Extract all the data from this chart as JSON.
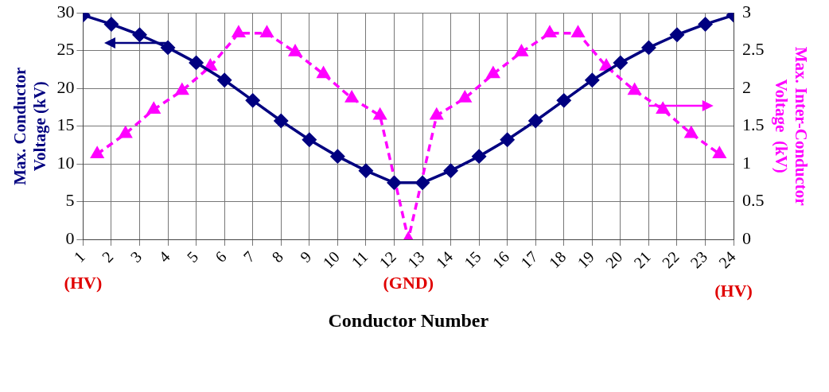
{
  "chart_data": {
    "type": "line",
    "xlabel": "Conductor Number",
    "ylabel": "Max. Conductor Voltage (kV)",
    "y2label": "Max. Inter-Conductor Voltage  (kV)",
    "xlim": [
      1,
      24
    ],
    "xticks": [
      1,
      2,
      3,
      4,
      5,
      6,
      7,
      8,
      9,
      10,
      11,
      12,
      13,
      14,
      15,
      16,
      17,
      18,
      19,
      20,
      21,
      22,
      23,
      24
    ],
    "ylim": [
      0,
      30
    ],
    "yticks": [
      0,
      5,
      10,
      15,
      20,
      25,
      30
    ],
    "y2lim": [
      0,
      3
    ],
    "y2ticks": [
      0,
      0.5,
      1,
      1.5,
      2,
      2.5,
      3
    ],
    "grid": true,
    "legend": false,
    "series": [
      {
        "color": "#000080",
        "marker": "diamond",
        "line_style": "solid",
        "x": [
          1,
          2,
          3,
          4,
          5,
          6,
          7,
          8,
          9,
          10,
          11,
          12,
          13,
          14,
          15,
          16,
          17,
          18,
          19,
          20,
          21,
          22,
          23,
          24
        ],
        "values": [
          29.7,
          28.5,
          27.1,
          25.4,
          23.4,
          21.1,
          18.4,
          15.7,
          13.2,
          11.0,
          9.1,
          7.5,
          7.5,
          9.1,
          11.0,
          13.2,
          15.7,
          18.4,
          21.1,
          23.4,
          25.4,
          27.1,
          28.5,
          29.7
        ]
      },
      {
        "color": "#ff00ff",
        "marker": "triangle",
        "line_style": "dashed",
        "axis": "y2",
        "x": [
          1.5,
          2.5,
          3.5,
          4.5,
          5.5,
          6.5,
          7.5,
          8.5,
          9.5,
          10.5,
          11.5,
          12.5,
          13.5,
          14.5,
          15.5,
          16.5,
          17.5,
          18.5,
          19.5,
          20.5,
          21.5,
          22.5,
          23.5
        ],
        "values": [
          1.13,
          1.4,
          1.72,
          1.97,
          2.29,
          2.73,
          2.73,
          2.48,
          2.19,
          1.87,
          1.64,
          0,
          1.64,
          1.87,
          2.19,
          2.48,
          2.73,
          2.73,
          2.29,
          1.97,
          1.72,
          1.4,
          1.13
        ]
      }
    ],
    "annotations": [
      "(HV)",
      "(GND)",
      "(HV)"
    ]
  }
}
